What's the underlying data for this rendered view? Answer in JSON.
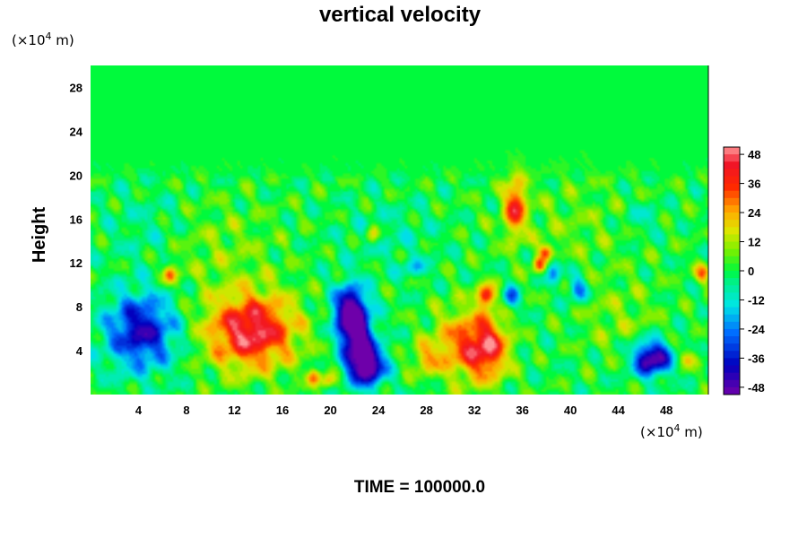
{
  "chart_data": {
    "type": "heatmap",
    "title": "vertical velocity",
    "ylabel": "Height",
    "x_unit_prefix": "(×10",
    "x_unit_exp": "4",
    "x_unit_suffix": " m)",
    "y_unit_prefix": "(×10",
    "y_unit_exp": "4",
    "y_unit_suffix": " m)",
    "xlim": [
      0,
      51.5
    ],
    "ylim": [
      0,
      30
    ],
    "xticks": [
      4,
      8,
      12,
      16,
      20,
      24,
      28,
      32,
      36,
      40,
      44,
      48
    ],
    "yticks": [
      4,
      8,
      12,
      16,
      20,
      24,
      28
    ],
    "colorbar": {
      "range": [
        -51,
        51
      ],
      "tick_values": [
        48,
        36,
        24,
        12,
        0,
        -12,
        -24,
        -36,
        -48
      ],
      "tick_labels": [
        "48",
        "36",
        "24",
        "12",
        "0",
        "-12",
        "-24",
        "-36",
        "-48"
      ]
    },
    "features": [
      {
        "x": 4.2,
        "y": 5.8,
        "sx": 2.0,
        "sy": 2.4,
        "value": -42
      },
      {
        "x": 13.4,
        "y": 5.8,
        "sx": 2.6,
        "sy": 2.4,
        "value": 48
      },
      {
        "x": 22.2,
        "y": 5.5,
        "sx": 0.9,
        "sy": 2.3,
        "value": -52
      },
      {
        "x": 23.2,
        "y": 2.6,
        "sx": 1.0,
        "sy": 1.3,
        "value": -50
      },
      {
        "x": 21.4,
        "y": 7.6,
        "sx": 0.9,
        "sy": 1.6,
        "value": -40
      },
      {
        "x": 31.0,
        "y": 4.6,
        "sx": 1.8,
        "sy": 2.3,
        "value": 28
      },
      {
        "x": 33.2,
        "y": 4.2,
        "sx": 1.2,
        "sy": 2.0,
        "value": 34
      },
      {
        "x": 33.0,
        "y": 9.0,
        "sx": 0.5,
        "sy": 0.7,
        "value": 40
      },
      {
        "x": 35.4,
        "y": 17.2,
        "sx": 0.6,
        "sy": 1.8,
        "value": 38
      },
      {
        "x": 46.8,
        "y": 3.3,
        "sx": 1.1,
        "sy": 1.1,
        "value": -55
      },
      {
        "x": 6.6,
        "y": 11.0,
        "sx": 0.4,
        "sy": 0.6,
        "value": 30
      },
      {
        "x": 28.0,
        "y": 3.3,
        "sx": 0.9,
        "sy": 1.0,
        "value": 18
      },
      {
        "x": 35.0,
        "y": 8.8,
        "sx": 0.5,
        "sy": 0.7,
        "value": -28
      },
      {
        "x": 38.6,
        "y": 11.3,
        "sx": 0.5,
        "sy": 0.8,
        "value": -24
      },
      {
        "x": 40.6,
        "y": 9.6,
        "sx": 0.6,
        "sy": 0.8,
        "value": -26
      },
      {
        "x": 37.4,
        "y": 11.8,
        "sx": 0.4,
        "sy": 0.5,
        "value": 28
      },
      {
        "x": 38.0,
        "y": 13.0,
        "sx": 0.4,
        "sy": 0.5,
        "value": 32
      },
      {
        "x": 18.6,
        "y": 1.6,
        "sx": 0.4,
        "sy": 0.5,
        "value": 26
      },
      {
        "x": 19.8,
        "y": 1.2,
        "sx": 0.4,
        "sy": 0.5,
        "value": 24
      },
      {
        "x": 49.8,
        "y": 3.3,
        "sx": 0.5,
        "sy": 0.6,
        "value": 20
      },
      {
        "x": 10.0,
        "y": 13.5,
        "sx": 4.0,
        "sy": 3.0,
        "value": 8
      },
      {
        "x": 40.0,
        "y": 15.5,
        "sx": 5.0,
        "sy": 3.0,
        "value": 6
      },
      {
        "x": 5.0,
        "y": 15.0,
        "sx": 2.5,
        "sy": 2.5,
        "value": -8
      },
      {
        "x": 25.0,
        "y": 14.5,
        "sx": 3.0,
        "sy": 2.0,
        "value": -6
      },
      {
        "x": 44.0,
        "y": 7.0,
        "sx": 2.5,
        "sy": 2.5,
        "value": 8
      },
      {
        "x": 51.0,
        "y": 11.0,
        "sx": 0.5,
        "sy": 0.6,
        "value": 24
      },
      {
        "x": 46.0,
        "y": 16.0,
        "sx": 1.2,
        "sy": 1.2,
        "value": -10
      },
      {
        "x": 23.5,
        "y": 14.6,
        "sx": 0.4,
        "sy": 0.6,
        "value": 20
      },
      {
        "x": 27.0,
        "y": 11.5,
        "sx": 0.8,
        "sy": 0.6,
        "value": -14
      }
    ],
    "active_layer_top": 19.5
  },
  "time_label": "TIME = 100000.0"
}
